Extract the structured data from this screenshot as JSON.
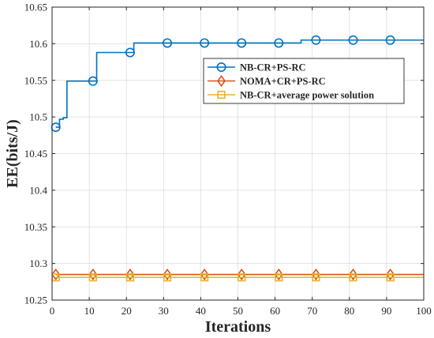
{
  "chart_data": {
    "type": "line",
    "title": "",
    "xlabel": "Iterations",
    "ylabel": "EE(bits/J)",
    "xlim": [
      0,
      100
    ],
    "ylim": [
      10.25,
      10.65
    ],
    "xticks": [
      0,
      10,
      20,
      30,
      40,
      50,
      60,
      70,
      80,
      90,
      100
    ],
    "yticks": [
      10.25,
      10.3,
      10.35,
      10.4,
      10.45,
      10.5,
      10.55,
      10.6,
      10.65
    ],
    "xtick_labels": [
      "0",
      "10",
      "20",
      "30",
      "40",
      "50",
      "60",
      "70",
      "80",
      "90",
      "100"
    ],
    "ytick_labels": [
      "10.25",
      "10.3",
      "10.35",
      "10.4",
      "10.45",
      "10.5",
      "10.55",
      "10.6",
      "10.65"
    ],
    "grid": true,
    "legend_position": "top-right",
    "series": [
      {
        "name": "NB-CR+PS-RC",
        "color": "#0072BD",
        "marker": "circle",
        "step": true,
        "x": [
          1,
          2,
          3,
          4,
          11,
          12,
          21,
          22,
          31,
          41,
          51,
          61,
          66,
          67,
          71,
          81,
          91,
          100
        ],
        "y": [
          10.486,
          10.497,
          10.499,
          10.549,
          10.549,
          10.588,
          10.588,
          10.601,
          10.601,
          10.601,
          10.601,
          10.601,
          10.601,
          10.605,
          10.605,
          10.605,
          10.605,
          10.605
        ],
        "marker_x": [
          1,
          11,
          21,
          31,
          41,
          51,
          61,
          71,
          81,
          91
        ],
        "marker_y": [
          10.486,
          10.549,
          10.588,
          10.601,
          10.601,
          10.601,
          10.601,
          10.605,
          10.605,
          10.605
        ]
      },
      {
        "name": "NOMA+CR+PS-RC",
        "color": "#D95319",
        "marker": "diamond",
        "step": false,
        "x": [
          1,
          100
        ],
        "y": [
          10.285,
          10.285
        ],
        "marker_x": [
          1,
          11,
          21,
          31,
          41,
          51,
          61,
          71,
          81,
          91
        ],
        "marker_y": [
          10.285,
          10.285,
          10.285,
          10.285,
          10.285,
          10.285,
          10.285,
          10.285,
          10.285,
          10.285
        ]
      },
      {
        "name": "NB-CR+average power solution",
        "color": "#EDB120",
        "marker": "square",
        "step": false,
        "x": [
          1,
          100
        ],
        "y": [
          10.281,
          10.281
        ],
        "marker_x": [
          1,
          11,
          21,
          31,
          41,
          51,
          61,
          71,
          81,
          91
        ],
        "marker_y": [
          10.281,
          10.281,
          10.281,
          10.281,
          10.281,
          10.281,
          10.281,
          10.281,
          10.281,
          10.281
        ]
      }
    ]
  }
}
